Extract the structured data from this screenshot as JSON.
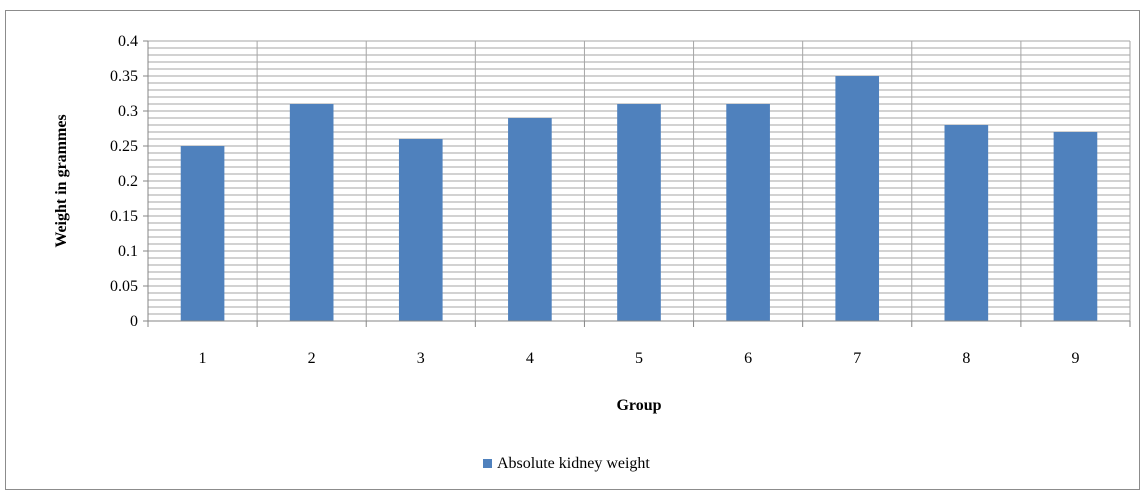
{
  "chart_data": {
    "type": "bar",
    "categories": [
      "1",
      "2",
      "3",
      "4",
      "5",
      "6",
      "7",
      "8",
      "9"
    ],
    "series": [
      {
        "name": "Absolute kidney weight",
        "values": [
          0.25,
          0.31,
          0.26,
          0.29,
          0.31,
          0.31,
          0.35,
          0.28,
          0.27
        ]
      }
    ],
    "xlabel": "Group",
    "ylabel": "Weight in grammes",
    "ylim": [
      0,
      0.4
    ],
    "yticks": [
      "0",
      "0.05",
      "0.1",
      "0.15",
      "0.2",
      "0.25",
      "0.3",
      "0.35",
      "0.4"
    ],
    "grid": true,
    "legend": "bottom",
    "colors": {
      "bar": "#4f81bd",
      "grid": "#a6a6a6",
      "axis": "#868686"
    }
  }
}
